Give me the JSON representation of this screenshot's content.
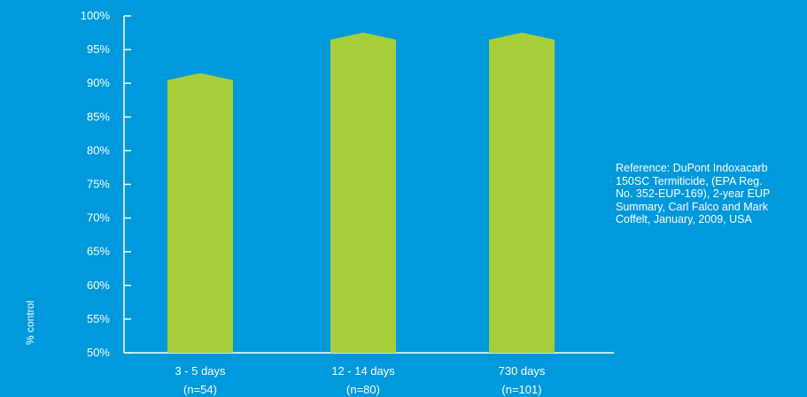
{
  "colors": {
    "background": "#0099DB",
    "bar": "#A6CE39",
    "axis": "#FFFFFF"
  },
  "chart_data": {
    "type": "bar",
    "categories": [
      "3 - 5 days",
      "12 - 14 days",
      "730 days"
    ],
    "category_sublabels": [
      "(n=54)",
      "(n=80)",
      "(n=101)"
    ],
    "values": [
      91,
      97,
      97
    ],
    "ylabel": "% control",
    "ylim": [
      50,
      100
    ],
    "yticks": [
      50,
      55,
      60,
      65,
      70,
      75,
      80,
      85,
      90,
      95,
      100
    ],
    "ytick_suffix": "%",
    "grid": false,
    "legend": "none"
  },
  "reference": "Reference: DuPont Indoxacarb\n150SC Termiticide, (EPA Reg.\nNo. 352-EUP-169), 2-year EUP\nSummary, Carl Falco and Mark\nCoffelt, January, 2009, USA"
}
